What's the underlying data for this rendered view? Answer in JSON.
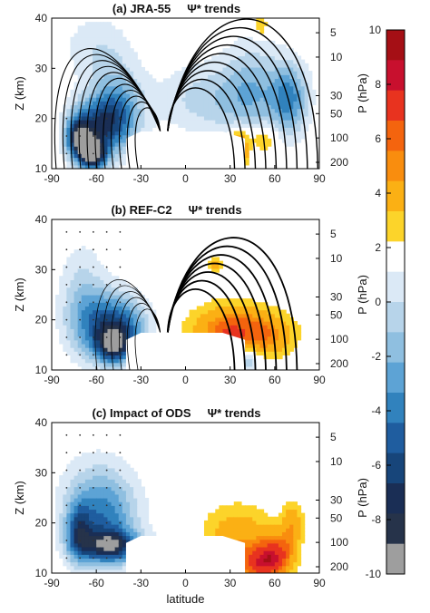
{
  "chart_data": {
    "type": "heatmap",
    "panels": [
      {
        "title_prefix": "(a) JRA-55",
        "title_quantity": "Ψ* trends",
        "contours": "dense overturning streamlines, strongest in NH",
        "features": [
          {
            "lat": -58,
            "z": 19,
            "value": -6,
            "sx": 13,
            "sz": 4
          },
          {
            "lat": -45,
            "z": 22,
            "value": -4,
            "sx": 12,
            "sz": 6
          },
          {
            "lat": -72,
            "z": 16,
            "value": -8,
            "sx": 6,
            "sz": 3
          },
          {
            "lat": -62,
            "z": 13,
            "value": -10,
            "sx": 6,
            "sz": 2.2
          },
          {
            "lat": 15,
            "z": 24,
            "value": -2.5,
            "sx": 24,
            "sz": 5
          },
          {
            "lat": 45,
            "z": 26,
            "value": -3,
            "sx": 14,
            "sz": 7
          },
          {
            "lat": 70,
            "z": 24,
            "value": -5,
            "sx": 9,
            "sz": 5
          },
          {
            "lat": 36,
            "z": 14,
            "value": 7,
            "sx": 4,
            "sz": 2.5
          },
          {
            "lat": 52,
            "z": 16,
            "value": 3,
            "sx": 7,
            "sz": 2
          },
          {
            "lat": 50,
            "z": 38.5,
            "value": 2.5,
            "sx": 4,
            "sz": 1.5
          },
          {
            "lat": -60,
            "z": 34,
            "value": -1.8,
            "sx": 16,
            "sz": 5
          }
        ]
      },
      {
        "title_prefix": "(b) REF-C2",
        "title_quantity": "Ψ* trends",
        "contours": "thin SH cells, thick NH cells",
        "features": [
          {
            "lat": -58,
            "z": 19,
            "value": -5,
            "sx": 14,
            "sz": 5
          },
          {
            "lat": -40,
            "z": 19,
            "value": -4,
            "sx": 12,
            "sz": 4
          },
          {
            "lat": -70,
            "z": 26,
            "value": -2,
            "sx": 11,
            "sz": 7
          },
          {
            "lat": -48,
            "z": 15,
            "value": -7,
            "sx": 8,
            "sz": 2.5
          },
          {
            "lat": 30,
            "z": 18,
            "value": 5,
            "sx": 18,
            "sz": 3.5
          },
          {
            "lat": 55,
            "z": 17,
            "value": 3,
            "sx": 14,
            "sz": 3
          },
          {
            "lat": 30,
            "z": 13,
            "value": 7,
            "sx": 5,
            "sz": 2.5
          },
          {
            "lat": 40,
            "z": 12,
            "value": -4,
            "sx": 7,
            "sz": 2
          },
          {
            "lat": 20,
            "z": 31,
            "value": 3,
            "sx": 3,
            "sz": 1.2
          }
        ]
      },
      {
        "title_prefix": "(c) Impact of ODS",
        "title_quantity": "Ψ* trends",
        "contours": "none",
        "features": [
          {
            "lat": -55,
            "z": 20,
            "value": -4.5,
            "sx": 16,
            "sz": 6
          },
          {
            "lat": -50,
            "z": 15.5,
            "value": -7,
            "sx": 14,
            "sz": 2.2
          },
          {
            "lat": -60,
            "z": 26,
            "value": -2,
            "sx": 18,
            "sz": 6
          },
          {
            "lat": -72,
            "z": 18,
            "value": -5,
            "sx": 6,
            "sz": 4
          },
          {
            "lat": 35,
            "z": 18,
            "value": 3,
            "sx": 16,
            "sz": 4
          },
          {
            "lat": 50,
            "z": 12,
            "value": 6.5,
            "sx": 10,
            "sz": 2.5
          },
          {
            "lat": 62,
            "z": 14,
            "value": 5,
            "sx": 8,
            "sz": 3
          },
          {
            "lat": 30,
            "z": 12,
            "value": 5,
            "sx": 5,
            "sz": 2
          },
          {
            "lat": 72,
            "z": 20,
            "value": 3,
            "sx": 5,
            "sz": 3
          }
        ]
      }
    ],
    "x": {
      "label": "latitude",
      "range": [
        -90,
        90
      ],
      "ticks": [
        -90,
        -60,
        -30,
        0,
        30,
        60,
        90
      ]
    },
    "y": {
      "label": "Z (km)",
      "range": [
        10,
        40
      ],
      "ticks": [
        10,
        20,
        30,
        40
      ]
    },
    "y_right": {
      "label": "P (hPa)",
      "ticks": [
        5,
        10,
        30,
        50,
        100,
        200
      ]
    },
    "colorbar": {
      "range": [
        -10,
        10
      ],
      "ticks": [
        10,
        8,
        6,
        4,
        2,
        0,
        -2,
        -4,
        -6,
        -8,
        -10
      ],
      "colors": [
        "#a50f15",
        "#c8102e",
        "#e8331f",
        "#f4640e",
        "#f98d0e",
        "#fbb014",
        "#fcd42a",
        "#ffffff",
        "#dbe9f6",
        "#b7d4ea",
        "#8fbfe0",
        "#5da3d5",
        "#3182bd",
        "#1f5d9f",
        "#17457a",
        "#1a2e55",
        "#26334a",
        "#9e9e9e"
      ]
    }
  }
}
